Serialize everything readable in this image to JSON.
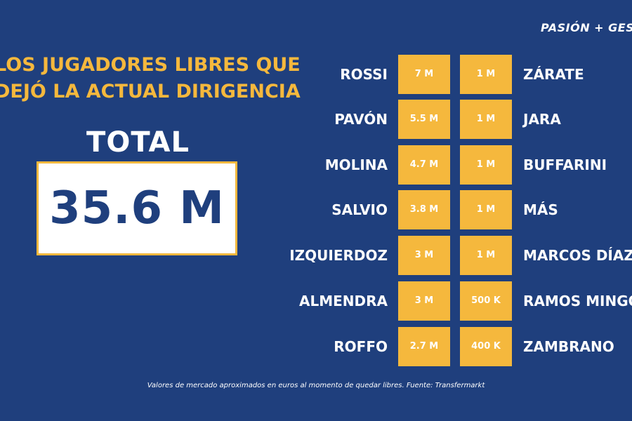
{
  "brand": "PASIÓN + GESTIÓ",
  "headline": {
    "line1": "LOS JUGADORES LIBRES QUE",
    "line2": "DEJÓ LA ACTUAL DIRIGENCIA"
  },
  "total": {
    "label": "TOTAL",
    "value": "35.6 M"
  },
  "players": [
    {
      "left_name": "ROSSI",
      "left_value": "7 M",
      "right_value": "1 M",
      "right_name": "ZÁRATE"
    },
    {
      "left_name": "PAVÓN",
      "left_value": "5.5 M",
      "right_value": "1 M",
      "right_name": "JARA"
    },
    {
      "left_name": "MOLINA",
      "left_value": "4.7 M",
      "right_value": "1 M",
      "right_name": "BUFFARINI"
    },
    {
      "left_name": "SALVIO",
      "left_value": "3.8 M",
      "right_value": "1 M",
      "right_name": "MÁS"
    },
    {
      "left_name": "IZQUIERDOZ",
      "left_value": "3 M",
      "right_value": "1 M",
      "right_name": "MARCOS DÍAZ"
    },
    {
      "left_name": "ALMENDRA",
      "left_value": "3 M",
      "right_value": "500 K",
      "right_name": "RAMOS MINGO"
    },
    {
      "left_name": "ROFFO",
      "left_value": "2.7 M",
      "right_value": "400 K",
      "right_name": "ZAMBRANO"
    }
  ],
  "footnote": "Valores de mercado aproximados en euros al momento de quedar libres. Fuente: Transfermarkt",
  "colors": {
    "background": "#1f3f7d",
    "accent": "#f5b83d",
    "text": "#ffffff"
  }
}
